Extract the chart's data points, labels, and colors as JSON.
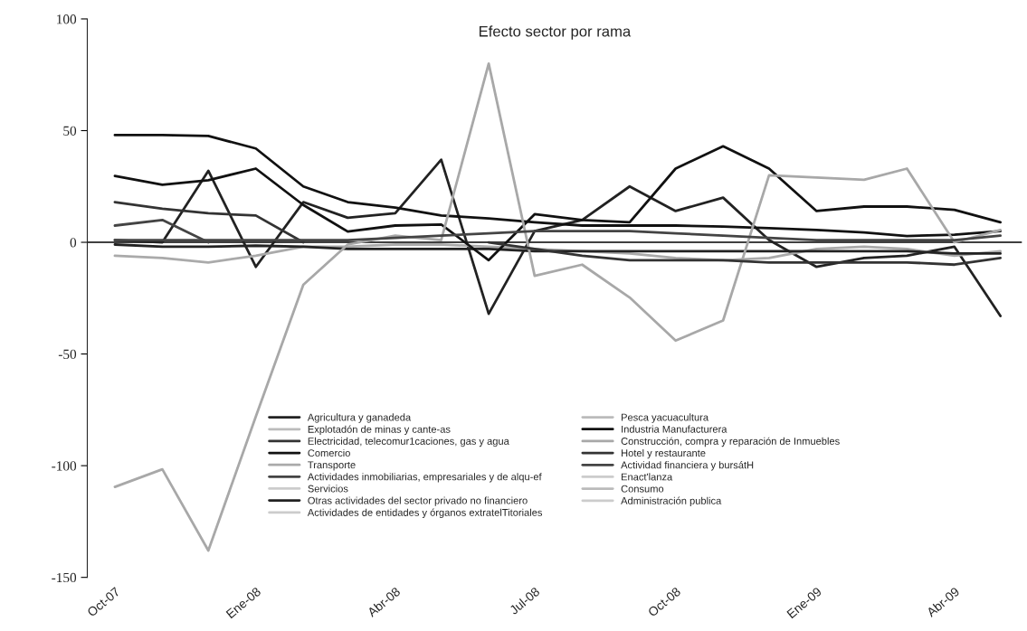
{
  "chart_data": {
    "type": "line",
    "title": "Efecto sector por rama",
    "x": [
      "2007-10",
      "2007-11",
      "2007-12",
      "2008-01",
      "2008-02",
      "2008-03",
      "2008-04",
      "2008-05",
      "2008-06",
      "2008-07",
      "2008-08",
      "2008-09",
      "2008-10",
      "2008-11",
      "2008-12",
      "2009-01",
      "2009-02",
      "2009-03",
      "2009-04",
      "2009-05"
    ],
    "xlim": [
      "2007-09-13",
      "2009-05-15"
    ],
    "xticks": [
      {
        "value": "2007-10",
        "label": "Oct-07"
      },
      {
        "value": "2008-01",
        "label": "Ene-08"
      },
      {
        "value": "2008-04",
        "label": "Abr-08"
      },
      {
        "value": "2008-07",
        "label": "Jul-08"
      },
      {
        "value": "2008-10",
        "label": "Oct-08"
      },
      {
        "value": "2009-01",
        "label": "Ene-09"
      },
      {
        "value": "2009-04",
        "label": "Abr-09"
      }
    ],
    "ylim": [
      -150,
      100
    ],
    "yticks": [
      -150,
      -100,
      -50,
      0,
      50,
      100
    ],
    "grid": false,
    "legend": "bottom",
    "marker": "none",
    "line_style": "solid",
    "ref_lines": [
      {
        "axis": "y",
        "value": 0,
        "color": "#000000"
      }
    ],
    "series": [
      {
        "name": "Agricultura y ganadeda",
        "color": "#222222",
        "values": [
          1,
          0,
          32,
          -11,
          18,
          11,
          13,
          37,
          -32,
          5,
          10,
          25,
          14,
          20,
          1,
          -11,
          -7,
          -6,
          -2,
          -33
        ]
      },
      {
        "name": "Explotadón de minas y cante-as",
        "color": "#bbbbbb",
        "values": [
          null,
          null,
          null,
          null,
          null,
          null,
          null,
          null,
          null,
          null,
          null,
          null,
          null,
          null,
          null,
          null,
          null,
          null,
          null,
          null
        ]
      },
      {
        "name": "Electricidad, telecomur1caciones, gas y agua",
        "color": "#333333",
        "values": [
          18,
          15,
          13,
          12,
          0,
          null,
          null,
          null,
          null,
          null,
          null,
          null,
          null,
          null,
          null,
          null,
          null,
          null,
          null,
          null
        ]
      },
      {
        "name": "Comercio",
        "color": "#111111",
        "values": [
          48,
          48,
          47.6,
          42,
          25,
          18,
          15.5,
          12,
          10.7,
          9,
          7.5,
          7.5,
          7.5,
          7,
          6.3,
          5.5,
          4.4,
          2.8,
          3.4,
          5
        ]
      },
      {
        "name": "Transporte",
        "color": "#aaaaaa",
        "values": [
          -6,
          -7,
          -9,
          -6,
          -2,
          -2,
          -1,
          -1,
          -2,
          -3,
          -4,
          -5,
          -7,
          -8,
          -7,
          -3,
          -2,
          -3,
          -6,
          -4
        ]
      },
      {
        "name": "Actividades inmobiliarias, empresariales y de alqu-ef",
        "color": "#444444",
        "values": [
          7.5,
          10,
          0,
          null,
          null,
          null,
          null,
          null,
          null,
          null,
          null,
          null,
          null,
          null,
          null,
          null,
          null,
          null,
          null,
          null
        ]
      },
      {
        "name": "Servicios",
        "color": "#cccccc",
        "values": [
          null,
          null,
          null,
          null,
          null,
          null,
          null,
          null,
          null,
          null,
          null,
          null,
          null,
          null,
          null,
          null,
          null,
          null,
          null,
          null
        ]
      },
      {
        "name": "Otras actividades del sector privado no financiero",
        "color": "#222222",
        "values": [
          -1,
          -2,
          -2,
          -1.5,
          -2,
          -3,
          -3,
          -3,
          -3,
          -4,
          -4,
          -4,
          -4,
          -4,
          -4,
          -4,
          -4,
          -4,
          -5,
          -5
        ]
      },
      {
        "name": "Actividades de entidades y órganos extratelTitoriales",
        "color": "#cccccc",
        "values": [
          null,
          null,
          null,
          null,
          null,
          null,
          null,
          null,
          null,
          null,
          null,
          null,
          null,
          null,
          null,
          null,
          null,
          null,
          null,
          null
        ]
      },
      {
        "name": "Pesca yacuacultura",
        "color": "#bbbbbb",
        "values": [
          null,
          null,
          null,
          null,
          null,
          null,
          null,
          null,
          null,
          null,
          null,
          null,
          null,
          null,
          null,
          null,
          null,
          null,
          null,
          null
        ]
      },
      {
        "name": "Industria Manufacturera",
        "color": "#111111",
        "values": [
          29.7,
          25.8,
          27.8,
          33,
          16.7,
          4.8,
          7.5,
          8,
          -8,
          12.6,
          10,
          9,
          33,
          43,
          33,
          14,
          16,
          16,
          14.5,
          9
        ]
      },
      {
        "name": "Construcción, compra y reparación de Inmuebles",
        "color": "#a8a8a8",
        "values": [
          -109.5,
          -101.6,
          -138,
          -78,
          -19,
          -1,
          3,
          1,
          80,
          -15,
          -10,
          -24.7,
          -44,
          -35,
          30,
          29,
          28,
          33,
          0,
          5.5
        ]
      },
      {
        "name": "Hotel y restaurante",
        "color": "#333333",
        "values": [
          null,
          null,
          null,
          null,
          null,
          null,
          null,
          null,
          0,
          -3,
          -6,
          -8,
          -8,
          -8,
          -9,
          -9,
          -9,
          -9,
          -10,
          -7
        ]
      },
      {
        "name": "Actividad financiera y bursátH",
        "color": "#444444",
        "values": [
          1,
          1,
          1,
          1,
          1,
          1,
          2,
          3,
          4,
          5,
          5,
          5,
          4,
          3,
          2,
          1,
          1,
          1,
          1,
          3
        ]
      },
      {
        "name": "Enact'lanza",
        "color": "#cccccc",
        "values": [
          null,
          null,
          null,
          null,
          null,
          null,
          null,
          null,
          null,
          null,
          null,
          null,
          null,
          null,
          null,
          null,
          null,
          null,
          null,
          null
        ]
      },
      {
        "name": "Consumo",
        "color": "#bbbbbb",
        "values": [
          null,
          null,
          null,
          null,
          null,
          null,
          null,
          null,
          null,
          null,
          null,
          null,
          null,
          null,
          null,
          null,
          null,
          null,
          null,
          null
        ]
      },
      {
        "name": "Administración publica",
        "color": "#cccccc",
        "values": [
          null,
          null,
          null,
          null,
          null,
          null,
          null,
          null,
          null,
          null,
          null,
          null,
          null,
          null,
          null,
          null,
          null,
          null,
          null,
          null
        ]
      }
    ]
  }
}
